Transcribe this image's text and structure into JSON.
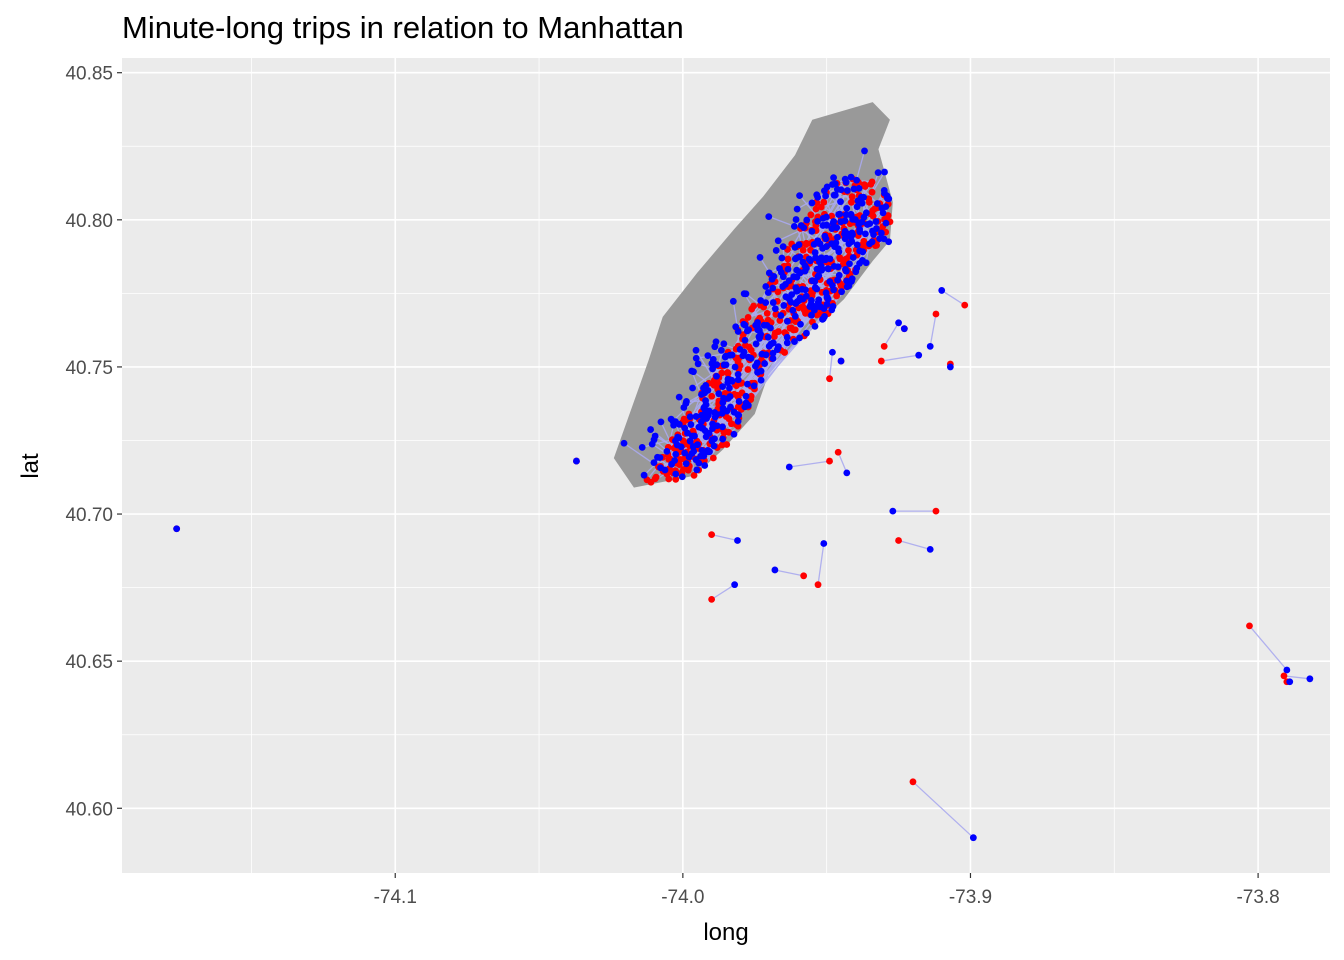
{
  "chart_data": {
    "type": "scatter",
    "title": "Minute-long trips in relation to Manhattan",
    "xlabel": "long",
    "ylabel": "lat",
    "xlim": [
      -74.195,
      -73.775
    ],
    "ylim": [
      40.578,
      40.855
    ],
    "x_ticks": [
      -74.1,
      -74.0,
      -73.9,
      -73.8
    ],
    "x_tick_labels": [
      "-74.1",
      "-74.0",
      "-73.9",
      "-73.8"
    ],
    "y_ticks": [
      40.6,
      40.65,
      40.7,
      40.75,
      40.8,
      40.85
    ],
    "y_tick_labels": [
      "40.60",
      "40.65",
      "40.70",
      "40.75",
      "40.80",
      "40.85"
    ],
    "grid": true,
    "legend": "none",
    "colors": {
      "panel_background": "#ebebeb",
      "grid": "#ffffff",
      "manhattan_fill": "#999999",
      "pickup": "#ff0000",
      "dropoff": "#0000ff",
      "trip_segment": "#aaaaee"
    },
    "manhattan_outline": [
      [
        -74.024,
        40.719
      ],
      [
        -74.017,
        40.709
      ],
      [
        -73.996,
        40.713
      ],
      [
        -73.986,
        40.722
      ],
      [
        -73.975,
        40.734
      ],
      [
        -73.969,
        40.751
      ],
      [
        -73.958,
        40.76
      ],
      [
        -73.944,
        40.773
      ],
      [
        -73.934,
        40.786
      ],
      [
        -73.928,
        40.793
      ],
      [
        -73.927,
        40.806
      ],
      [
        -73.932,
        40.824
      ],
      [
        -73.928,
        40.834
      ],
      [
        -73.934,
        40.84
      ],
      [
        -73.955,
        40.834
      ],
      [
        -73.961,
        40.822
      ],
      [
        -73.972,
        40.808
      ],
      [
        -73.982,
        40.797
      ],
      [
        -73.995,
        40.782
      ],
      [
        -74.007,
        40.767
      ],
      [
        -74.012,
        40.752
      ]
    ],
    "manhattan_trips": {
      "count": 430,
      "seed": 7,
      "lat_range": [
        40.706,
        40.815
      ],
      "max_length_deg": 0.012
    },
    "outer_trips": [
      {
        "pickup": [
          -74.176,
          40.695
        ],
        "dropoff": [
          -74.176,
          40.695
        ]
      },
      {
        "pickup": [
          -73.92,
          40.609
        ],
        "dropoff": [
          -73.899,
          40.59
        ]
      },
      {
        "pickup": [
          -73.803,
          40.662
        ],
        "dropoff": [
          -73.79,
          40.647
        ]
      },
      {
        "pickup": [
          -73.791,
          40.645
        ],
        "dropoff": [
          -73.782,
          40.644
        ]
      },
      {
        "pickup": [
          -73.79,
          40.643
        ],
        "dropoff": [
          -73.789,
          40.643
        ]
      },
      {
        "pickup": [
          -73.99,
          40.671
        ],
        "dropoff": [
          -73.982,
          40.676
        ]
      },
      {
        "pickup": [
          -73.99,
          40.693
        ],
        "dropoff": [
          -73.981,
          40.691
        ]
      },
      {
        "pickup": [
          -73.958,
          40.679
        ],
        "dropoff": [
          -73.968,
          40.681
        ]
      },
      {
        "pickup": [
          -73.953,
          40.676
        ],
        "dropoff": [
          -73.951,
          40.69
        ]
      },
      {
        "pickup": [
          -73.912,
          40.701
        ],
        "dropoff": [
          -73.927,
          40.701
        ]
      },
      {
        "pickup": [
          -73.925,
          40.691
        ],
        "dropoff": [
          -73.914,
          40.688
        ]
      },
      {
        "pickup": [
          -73.946,
          40.721
        ],
        "dropoff": [
          -73.943,
          40.714
        ]
      },
      {
        "pickup": [
          -73.949,
          40.718
        ],
        "dropoff": [
          -73.963,
          40.716
        ]
      },
      {
        "pickup": [
          -73.949,
          40.746
        ],
        "dropoff": [
          -73.948,
          40.755
        ]
      },
      {
        "pickup": [
          -73.945,
          40.752
        ],
        "dropoff": [
          -73.945,
          40.752
        ]
      },
      {
        "pickup": [
          -73.931,
          40.752
        ],
        "dropoff": [
          -73.918,
          40.754
        ]
      },
      {
        "pickup": [
          -73.93,
          40.757
        ],
        "dropoff": [
          -73.925,
          40.765
        ]
      },
      {
        "pickup": [
          -73.923,
          40.763
        ],
        "dropoff": [
          -73.923,
          40.763
        ]
      },
      {
        "pickup": [
          -73.912,
          40.768
        ],
        "dropoff": [
          -73.914,
          40.757
        ]
      },
      {
        "pickup": [
          -73.902,
          40.771
        ],
        "dropoff": [
          -73.91,
          40.776
        ]
      },
      {
        "pickup": [
          -73.907,
          40.751
        ],
        "dropoff": [
          -73.907,
          40.75
        ]
      },
      {
        "pickup": [
          -74.037,
          40.718
        ],
        "dropoff": [
          -74.037,
          40.718
        ]
      },
      {
        "pickup": [
          -73.951,
          40.806
        ],
        "dropoff": [
          -73.948,
          40.812
        ]
      },
      {
        "pickup": [
          -73.944,
          40.797
        ],
        "dropoff": [
          -73.941,
          40.795
        ]
      }
    ]
  }
}
